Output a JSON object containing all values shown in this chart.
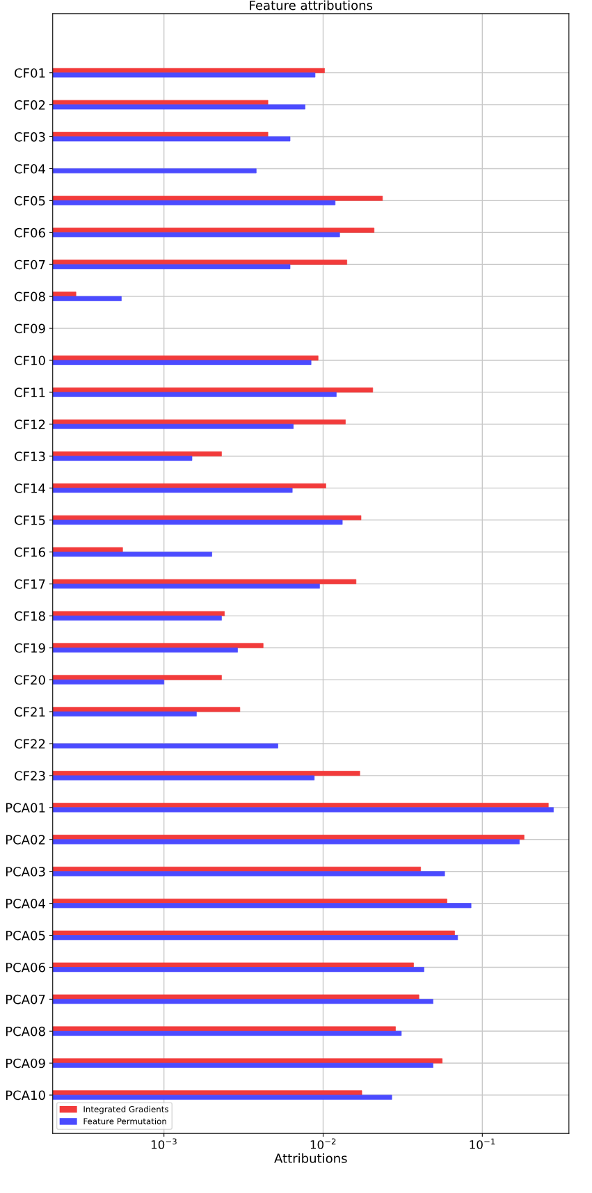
{
  "chart_data": {
    "type": "bar",
    "orientation": "horizontal",
    "title": "Feature attributions",
    "xlabel": "Attributions",
    "categories": [
      "CF01",
      "CF02",
      "CF03",
      "CF04",
      "CF05",
      "CF06",
      "CF07",
      "CF08",
      "CF09",
      "CF10",
      "CF11",
      "CF12",
      "CF13",
      "CF14",
      "CF15",
      "CF16",
      "CF17",
      "CF18",
      "CF19",
      "CF20",
      "CF21",
      "CF22",
      "CF23",
      "PCA01",
      "PCA02",
      "PCA03",
      "PCA04",
      "PCA05",
      "PCA06",
      "PCA07",
      "PCA08",
      "PCA09",
      "PCA10"
    ],
    "series": [
      {
        "name": "Integrated Gradients",
        "color": "#f23b3b",
        "values": [
          0.0102,
          0.0045,
          0.0045,
          null,
          0.0236,
          0.0209,
          0.0141,
          0.00028,
          null,
          0.0093,
          0.0205,
          0.0138,
          0.0023,
          0.0104,
          0.0173,
          0.00055,
          0.0161,
          0.0024,
          0.0042,
          0.0023,
          0.003,
          null,
          0.017,
          0.26,
          0.183,
          0.041,
          0.06,
          0.067,
          0.037,
          0.04,
          0.0285,
          0.056,
          0.0175
        ]
      },
      {
        "name": "Feature Permutation",
        "color": "#4b4bff",
        "values": [
          0.0089,
          0.0077,
          0.0062,
          0.0038,
          0.0119,
          0.0127,
          0.0062,
          0.00054,
          null,
          0.0084,
          0.0121,
          0.0065,
          0.0015,
          0.0064,
          0.0132,
          0.002,
          0.0095,
          0.0023,
          0.0029,
          0.001,
          0.0016,
          0.0052,
          0.0088,
          0.28,
          0.171,
          0.058,
          0.085,
          0.07,
          0.043,
          0.049,
          0.031,
          0.049,
          0.027
        ]
      }
    ],
    "log": "x",
    "xlim": [
      0.0002,
      0.35
    ],
    "xticks": [
      {
        "value": 0.001,
        "label": "10$^{−3}$"
      },
      {
        "value": 0.01,
        "label": "10$^{−2}$"
      },
      {
        "value": 0.1,
        "label": "10$^{−1}$"
      }
    ],
    "grid": true,
    "legend": "bottom left"
  }
}
